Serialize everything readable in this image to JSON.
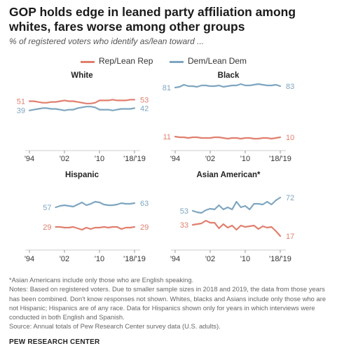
{
  "title": "GOP holds edge in leaned party affiliation among whites, fares worse among other groups",
  "subtitle": "% of registered voters who identify as/lean toward ...",
  "legend": [
    {
      "label": "Rep/Lean Rep",
      "color": "#e07f6e"
    },
    {
      "label": "Dem/Lean Dem",
      "color": "#7ea6c0"
    }
  ],
  "colors": {
    "rep": "#e07f6e",
    "dem": "#7ea6c0"
  },
  "notes": [
    "*Asian Americans include only those who are English speaking.",
    "Notes: Based on registered voters. Due to smaller sample sizes in 2018 and 2019, the data from those years has been combined. Don't know responses not shown. Whites, blacks and Asians include only those who are not Hispanic; Hispanics are of any race. Data for Hispanics shown only for years in which interviews were conducted in both English and Spanish.",
    "Source: Annual totals of Pew Research Center survey data (U.S. adults)."
  ],
  "source": "PEW RESEARCH CENTER",
  "chart_data": [
    {
      "type": "line",
      "title": "White",
      "x": [
        "1994",
        "1995",
        "1996",
        "1997",
        "1998",
        "1999",
        "2000",
        "2001",
        "2002",
        "2003",
        "2004",
        "2005",
        "2006",
        "2007",
        "2008",
        "2009",
        "2010",
        "2011",
        "2012",
        "2013",
        "2014",
        "2015",
        "2016",
        "2017",
        "2018/2019"
      ],
      "xticks": [
        "'94",
        "'02",
        "'10",
        "'18/'19"
      ],
      "ylim": [
        0,
        100
      ],
      "series": [
        {
          "name": "Rep/Lean Rep",
          "values": [
            51,
            51,
            50,
            49,
            49,
            50,
            50,
            51,
            52,
            51,
            51,
            50,
            49,
            48,
            48,
            49,
            52,
            52,
            52,
            53,
            52,
            52,
            52,
            53,
            53
          ],
          "start_label": "51",
          "end_label": "53"
        },
        {
          "name": "Dem/Lean Dem",
          "values": [
            39,
            40,
            41,
            42,
            42,
            41,
            41,
            40,
            39,
            40,
            40,
            42,
            43,
            44,
            44,
            43,
            40,
            40,
            40,
            39,
            40,
            41,
            41,
            41,
            42
          ],
          "start_label": "39",
          "end_label": "42"
        }
      ]
    },
    {
      "type": "line",
      "title": "Black",
      "x": [
        "1994",
        "1995",
        "1996",
        "1997",
        "1998",
        "1999",
        "2000",
        "2001",
        "2002",
        "2003",
        "2004",
        "2005",
        "2006",
        "2007",
        "2008",
        "2009",
        "2010",
        "2011",
        "2012",
        "2013",
        "2014",
        "2015",
        "2016",
        "2017",
        "2018/2019"
      ],
      "xticks": [
        "'94",
        "'02",
        "'10",
        "'18/'19"
      ],
      "ylim": [
        0,
        100
      ],
      "series": [
        {
          "name": "Rep/Lean Rep",
          "values": [
            11,
            10,
            10,
            9,
            10,
            10,
            9,
            9,
            9,
            10,
            10,
            9,
            8,
            9,
            9,
            8,
            9,
            9,
            8,
            8,
            9,
            9,
            8,
            9,
            10
          ],
          "start_label": "11",
          "end_label": "10"
        },
        {
          "name": "Dem/Lean Dem",
          "values": [
            81,
            82,
            85,
            83,
            83,
            82,
            84,
            84,
            83,
            83,
            84,
            82,
            83,
            84,
            84,
            86,
            84,
            84,
            85,
            86,
            85,
            84,
            84,
            85,
            83
          ],
          "start_label": "81",
          "end_label": "83"
        }
      ]
    },
    {
      "type": "line",
      "title": "Hispanic",
      "x": [
        "2000",
        "2001",
        "2002",
        "2003",
        "2004",
        "2005",
        "2006",
        "2007",
        "2008",
        "2009",
        "2010",
        "2011",
        "2012",
        "2013",
        "2014",
        "2015",
        "2016",
        "2017",
        "2018/2019"
      ],
      "xticks": [
        "'94",
        "'02",
        "'10",
        "'18/'19"
      ],
      "ylim": [
        0,
        100
      ],
      "series": [
        {
          "name": "Rep/Lean Rep",
          "values": [
            29,
            29,
            28,
            28,
            29,
            27,
            25,
            28,
            26,
            28,
            28,
            29,
            28,
            29,
            29,
            26,
            28,
            28,
            29
          ],
          "start_label": "29",
          "end_label": "29"
        },
        {
          "name": "Dem/Lean Dem",
          "values": [
            57,
            59,
            60,
            59,
            58,
            61,
            64,
            60,
            62,
            65,
            64,
            61,
            60,
            60,
            61,
            63,
            62,
            62,
            63
          ],
          "start_label": "57",
          "end_label": "63"
        }
      ]
    },
    {
      "type": "line",
      "title": "Asian American*",
      "x": [
        "1998",
        "1999",
        "2000",
        "2001",
        "2002",
        "2003",
        "2004",
        "2005",
        "2006",
        "2007",
        "2008",
        "2009",
        "2010",
        "2011",
        "2012",
        "2013",
        "2014",
        "2015",
        "2016",
        "2017",
        "2018/2019"
      ],
      "xticks": [
        "'94",
        "'02",
        "'10",
        "'18/'19"
      ],
      "ylim": [
        0,
        100
      ],
      "series": [
        {
          "name": "Rep/Lean Rep",
          "values": [
            33,
            34,
            35,
            39,
            36,
            36,
            28,
            34,
            29,
            32,
            26,
            32,
            30,
            31,
            32,
            27,
            31,
            29,
            30,
            24,
            17
          ],
          "start_label": "33",
          "end_label": "17"
        },
        {
          "name": "Dem/Lean Dem",
          "values": [
            53,
            51,
            50,
            54,
            56,
            55,
            61,
            55,
            58,
            55,
            66,
            58,
            60,
            55,
            63,
            63,
            62,
            66,
            62,
            68,
            72
          ],
          "start_label": "53",
          "end_label": "72"
        }
      ]
    }
  ]
}
